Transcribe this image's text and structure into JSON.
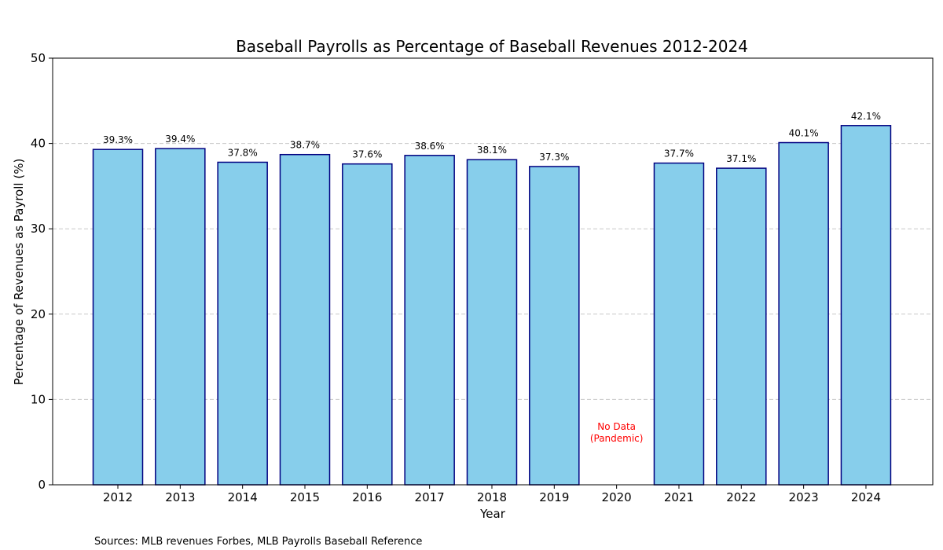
{
  "chart_data": {
    "type": "bar",
    "title": "Baseball Payrolls as Percentage of Baseball Revenues 2012-2024",
    "xlabel": "Year",
    "ylabel": "Percentage of Revenues as Payroll (%)",
    "ylim": [
      0,
      50
    ],
    "yticks": [
      0,
      10,
      20,
      30,
      40,
      50
    ],
    "grid": "horizontal-dashed",
    "categories": [
      "2012",
      "2013",
      "2014",
      "2015",
      "2016",
      "2017",
      "2018",
      "2019",
      "2020",
      "2021",
      "2022",
      "2023",
      "2024"
    ],
    "values": [
      39.3,
      39.4,
      37.8,
      38.7,
      37.6,
      38.6,
      38.1,
      37.3,
      null,
      37.7,
      37.1,
      40.1,
      42.1
    ],
    "data_labels": [
      "39.3%",
      "39.4%",
      "37.8%",
      "38.7%",
      "37.6%",
      "38.6%",
      "38.1%",
      "37.3%",
      "",
      "37.7%",
      "37.1%",
      "40.1%",
      "42.1%"
    ],
    "annotations": [
      {
        "category": "2020",
        "text_lines": [
          "No Data",
          "(Pandemic)"
        ],
        "color": "#ff0000"
      }
    ],
    "colors": {
      "bar_fill": "#87ceeb",
      "bar_edge": "#000080",
      "grid": "#c8c8c8"
    }
  },
  "footer": {
    "sources": "Sources: MLB revenues Forbes, MLB Payrolls Baseball Reference"
  }
}
